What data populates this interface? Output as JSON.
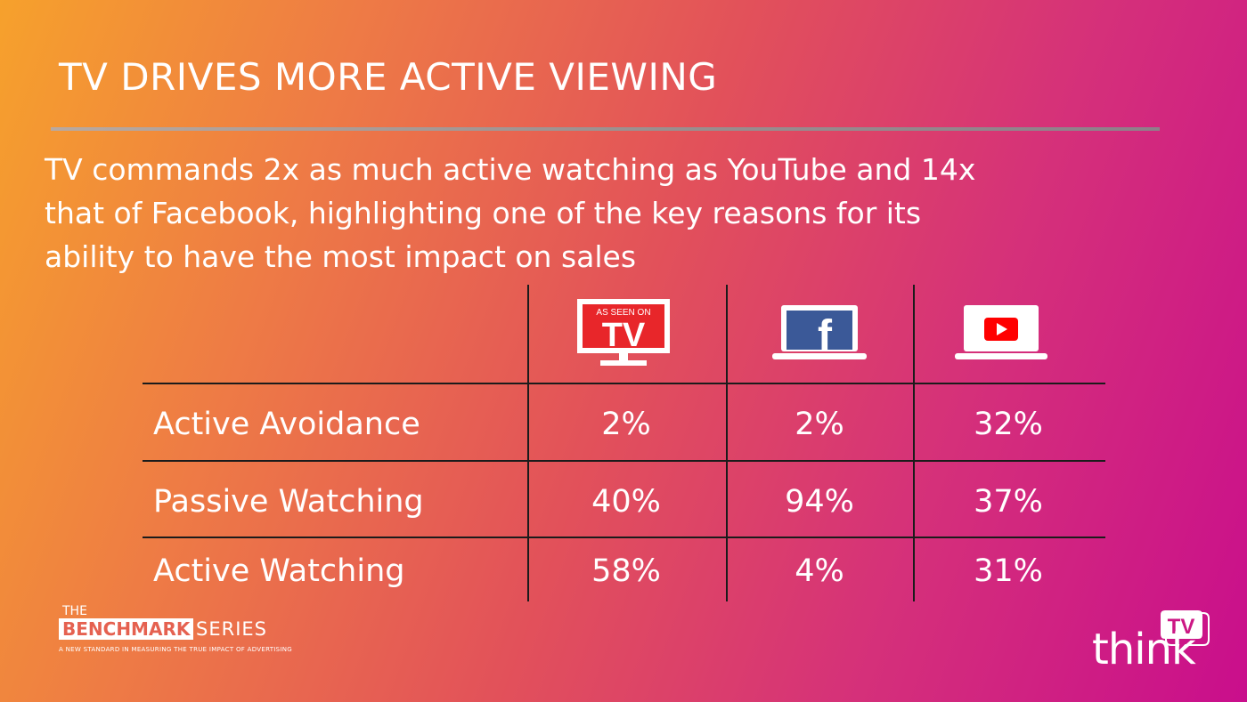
{
  "header": {
    "title": "TV DRIVES MORE ACTIVE VIEWING"
  },
  "subtitle_lines": [
    "TV commands 2x as much active watching as YouTube and 14x",
    "that of Facebook, highlighting one of the key reasons for its",
    "ability to have the most impact on sales"
  ],
  "table": {
    "columns": [
      {
        "icon": "tv-as-seen-on-tv-icon",
        "badge_top": "AS SEEN ON",
        "badge_big": "TV"
      },
      {
        "icon": "facebook-laptop-icon",
        "glyph": "f"
      },
      {
        "icon": "youtube-laptop-icon"
      }
    ],
    "rows": [
      {
        "label": "Active Avoidance",
        "values": [
          "2%",
          "2%",
          "32%"
        ]
      },
      {
        "label": "Passive Watching",
        "values": [
          "40%",
          "94%",
          "37%"
        ]
      },
      {
        "label": "Active Watching",
        "values": [
          "58%",
          "4%",
          "31%"
        ]
      }
    ]
  },
  "footer": {
    "brand_the": "THE",
    "brand_benchmark": "BENCHMARK",
    "brand_series": "SERIES",
    "brand_tagline": "A NEW STANDARD IN MEASURING THE TRUE IMPACT OF ADVERTISING",
    "logo_think": "think",
    "logo_tv": "TV"
  },
  "colors": {
    "gradient_start": "#f6a12c",
    "gradient_end": "#c90e8c",
    "facebook_blue": "#3b5998",
    "youtube_red": "#ff0000",
    "tv_red": "#e8262a"
  }
}
